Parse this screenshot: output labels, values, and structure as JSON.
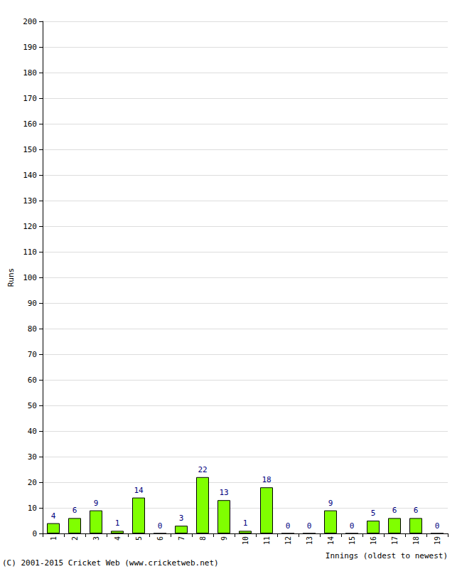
{
  "chart_data": {
    "type": "bar",
    "y_label": "Runs",
    "x_label": "Innings (oldest to newest)",
    "annotations": [
      "(C) 2001-2015 Cricket Web (www.cricketweb.net)"
    ],
    "categories": [
      "1",
      "2",
      "3",
      "4",
      "5",
      "6",
      "7",
      "8",
      "9",
      "10",
      "11",
      "12",
      "13",
      "14",
      "15",
      "16",
      "17",
      "18",
      "19"
    ],
    "values": [
      4,
      6,
      9,
      1,
      14,
      0,
      3,
      22,
      13,
      1,
      18,
      0,
      0,
      9,
      0,
      5,
      6,
      6,
      0
    ],
    "color": "#80ff00",
    "ylim": [
      0,
      200
    ],
    "yticks": [
      0,
      10,
      20,
      30,
      40,
      50,
      60,
      70,
      80,
      90,
      100,
      110,
      120,
      130,
      140,
      150,
      160,
      170,
      180,
      190,
      200
    ],
    "grid": true,
    "data_labels": true
  }
}
